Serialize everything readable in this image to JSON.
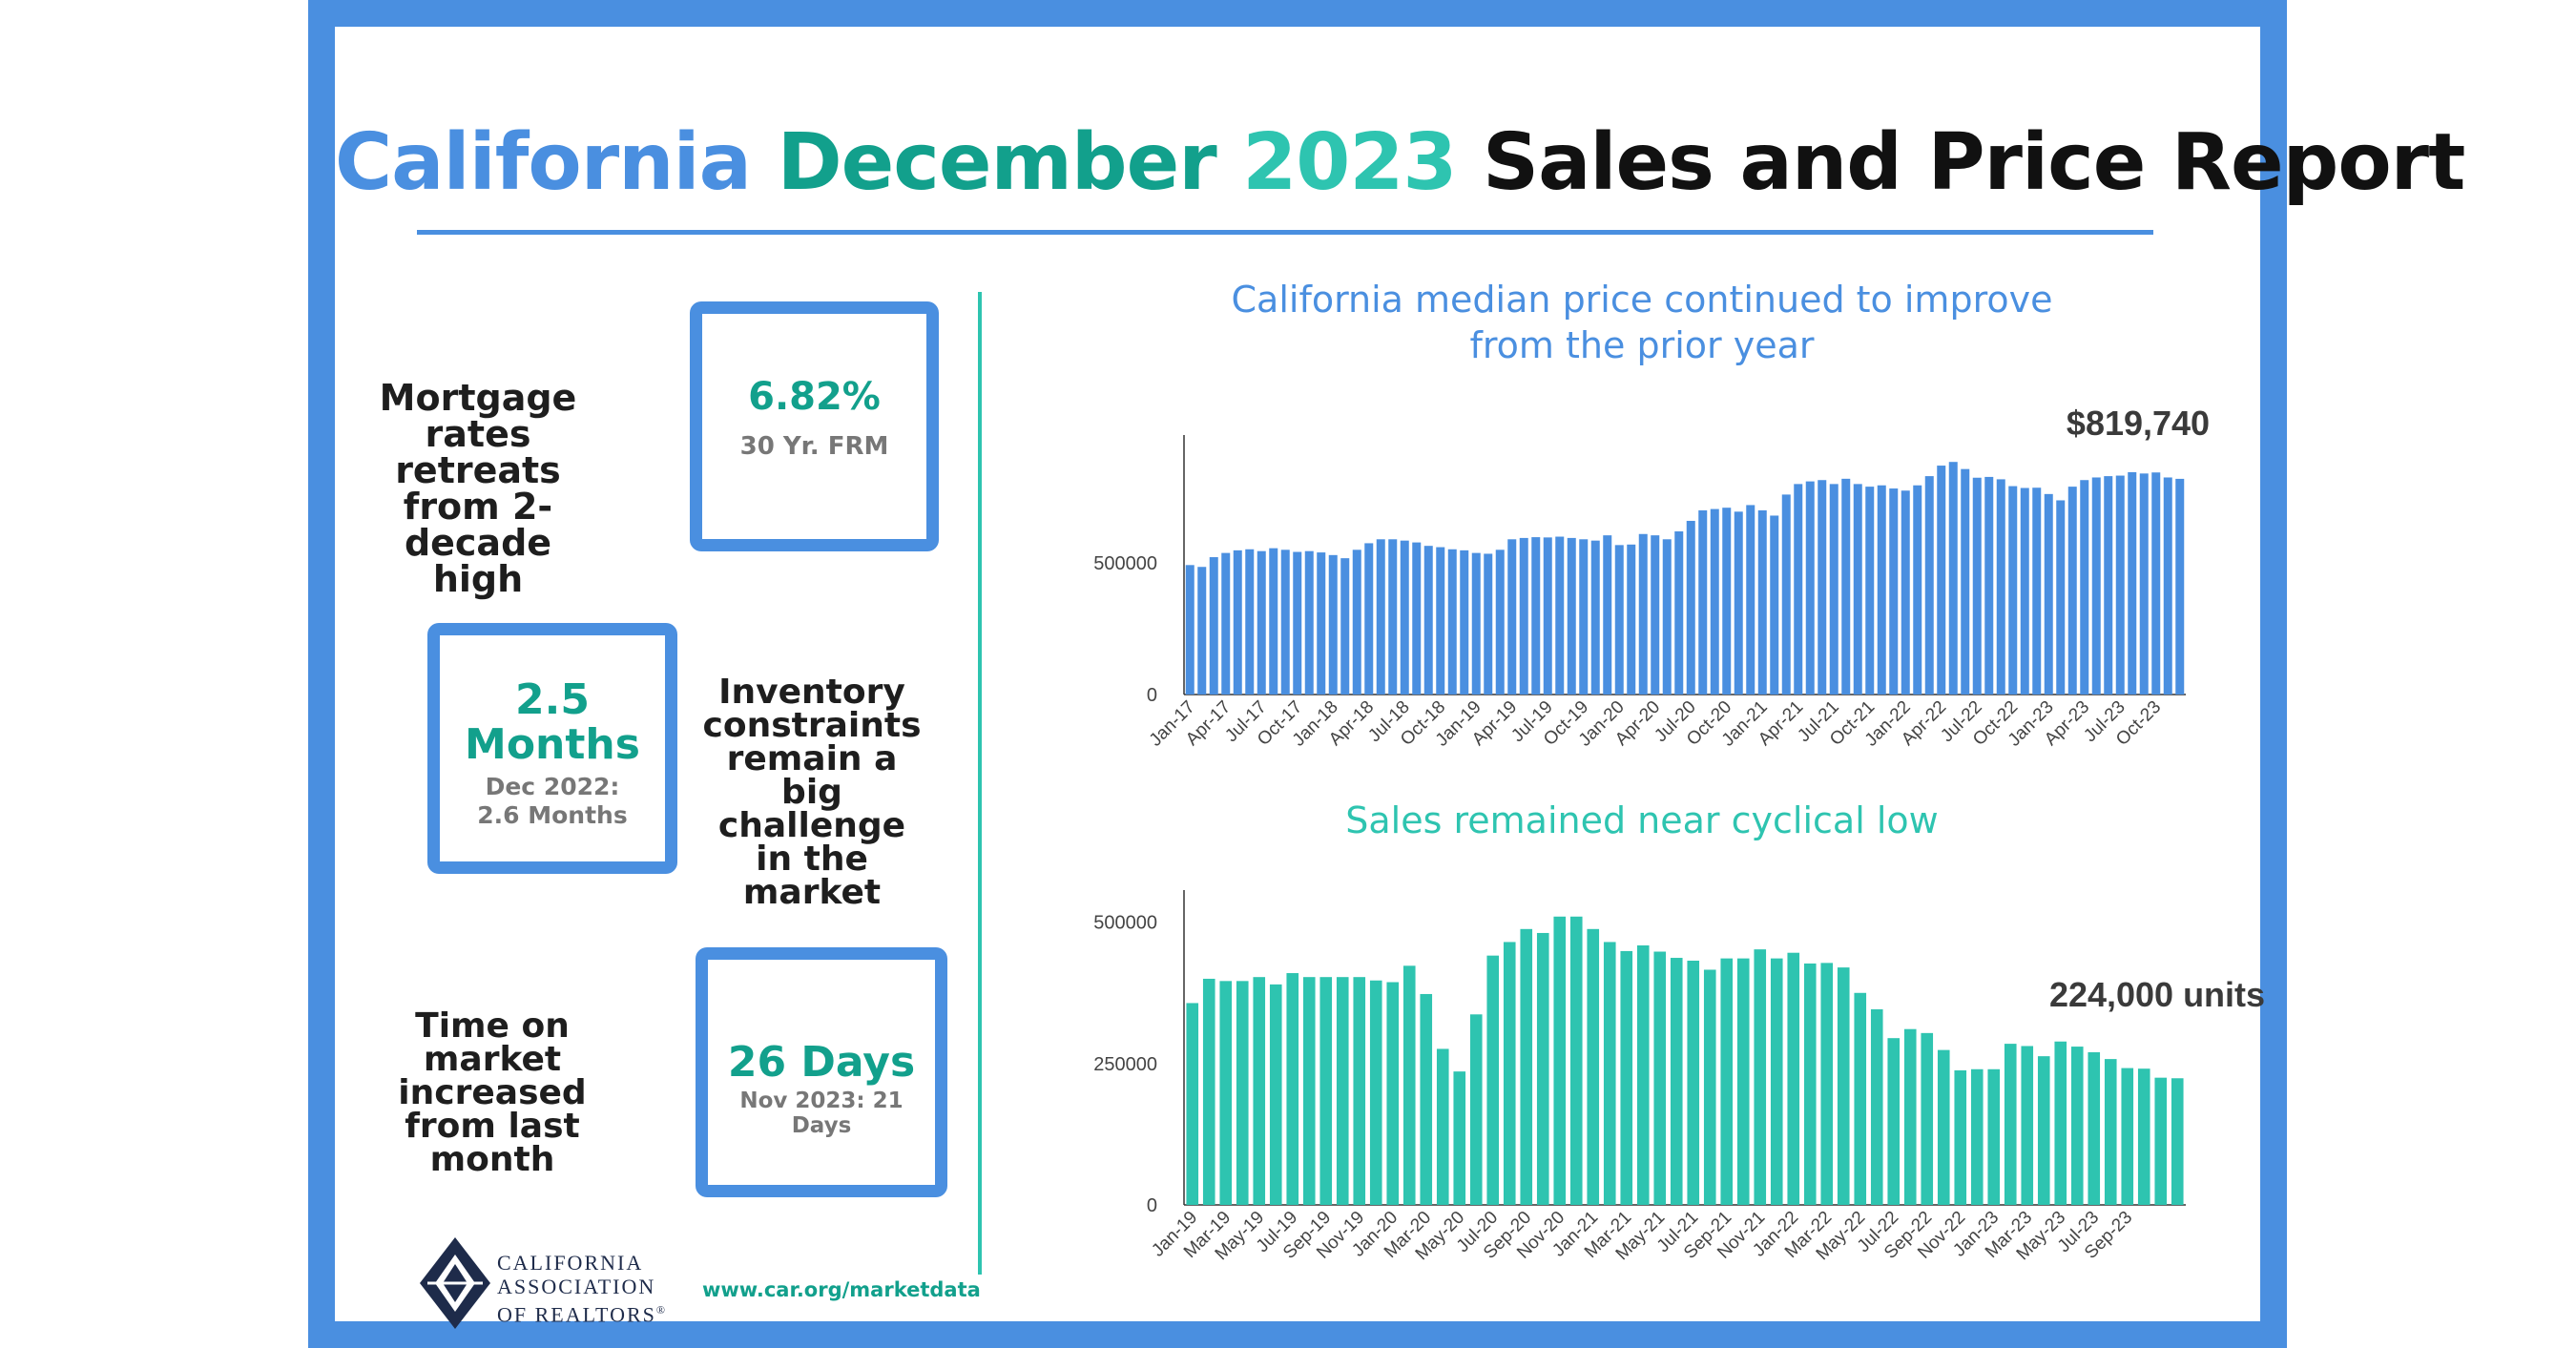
{
  "title": {
    "part1": "California",
    "part2": "December",
    "part3": "2023",
    "part4": "Sales and Price Report"
  },
  "mortgage": {
    "text": "Mortgage rates retreats from 2-decade high",
    "value": "6.82%",
    "sub": "30 Yr. FRM"
  },
  "inventory": {
    "text": "Inventory constraints remain a big challenge in the market",
    "value1": "2.5",
    "value2": "Months",
    "sub1": "Dec 2022:",
    "sub2": "2.6 Months"
  },
  "time_on_market": {
    "text": "Time on market increased from last month",
    "value": "26 Days",
    "sub": "Nov 2023: 21 Days"
  },
  "footer": {
    "org_line1": "CALIFORNIA",
    "org_line2": "ASSOCIATION",
    "org_line3": "OF REALTORS",
    "org_mark": "®",
    "url": "www.car.org/marketdata"
  },
  "colors": {
    "blue": "#4a8fe0",
    "teal": "#2ec4b0",
    "dark_teal": "#12a08c"
  },
  "chart_data": [
    {
      "type": "bar",
      "title_line1": "California median price continued to improve",
      "title_line2": "from the prior year",
      "annotation": "$819,740",
      "x_ticks": [
        "Jan-17",
        "Apr-17",
        "Jul-17",
        "Oct-17",
        "Jan-18",
        "Apr-18",
        "Jul-18",
        "Oct-18",
        "Jan-19",
        "Apr-19",
        "Jul-19",
        "Oct-19",
        "Jan-20",
        "Apr-20",
        "Jul-20",
        "Oct-20",
        "Jan-21",
        "Apr-21",
        "Jul-21",
        "Oct-21",
        "Jan-22",
        "Apr-22",
        "Jul-22",
        "Oct-22",
        "Jan-23",
        "Apr-23",
        "Jul-23",
        "Oct-23"
      ],
      "y_ticks": [
        "0",
        "500000"
      ],
      "ylim": [
        0,
        950000
      ],
      "color": "#4a8fe0",
      "values": [
        492000,
        485000,
        522000,
        538000,
        548000,
        552000,
        545000,
        556000,
        550000,
        542000,
        545000,
        540000,
        530000,
        518000,
        550000,
        575000,
        590000,
        590000,
        585000,
        578000,
        565000,
        560000,
        552000,
        548000,
        538000,
        535000,
        550000,
        590000,
        595000,
        598000,
        597000,
        600000,
        595000,
        590000,
        585000,
        605000,
        568000,
        570000,
        610000,
        605000,
        590000,
        620000,
        660000,
        700000,
        705000,
        710000,
        695000,
        720000,
        700000,
        680000,
        760000,
        800000,
        810000,
        815000,
        800000,
        820000,
        800000,
        790000,
        795000,
        783000,
        775000,
        795000,
        830000,
        870000,
        884000,
        857000,
        824000,
        827000,
        818000,
        792000,
        785000,
        786000,
        762000,
        738000,
        790000,
        815000,
        825000,
        830000,
        832000,
        845000,
        840000,
        844000,
        825000,
        819740
      ]
    },
    {
      "type": "bar",
      "title": "Sales remained near cyclical low",
      "annotation": "224,000 units",
      "x_ticks": [
        "Jan-19",
        "Mar-19",
        "May-19",
        "Jul-19",
        "Sep-19",
        "Nov-19",
        "Jan-20",
        "Mar-20",
        "May-20",
        "Jul-20",
        "Sep-20",
        "Nov-20",
        "Jan-21",
        "Mar-21",
        "May-21",
        "Jul-21",
        "Sep-21",
        "Nov-21",
        "Jan-22",
        "Mar-22",
        "May-22",
        "Jul-22",
        "Sep-22",
        "Nov-22",
        "Jan-23",
        "Mar-23",
        "May-23",
        "Jul-23",
        "Sep-23"
      ],
      "y_ticks": [
        "0",
        "250000",
        "500000"
      ],
      "ylim": [
        0,
        540000
      ],
      "color": "#2ec4b0",
      "values": [
        357000,
        400000,
        396000,
        396000,
        403000,
        390000,
        410000,
        403000,
        403000,
        403000,
        403000,
        397000,
        394000,
        423000,
        373000,
        276000,
        236000,
        337000,
        441000,
        465000,
        488000,
        481000,
        510000,
        510000,
        488000,
        465000,
        449000,
        459000,
        448000,
        437000,
        432000,
        416000,
        436000,
        436000,
        452000,
        436000,
        446000,
        427000,
        428000,
        420000,
        375000,
        346000,
        295000,
        311000,
        304000,
        274000,
        238000,
        240000,
        240000,
        285000,
        281000,
        263000,
        289000,
        280000,
        270000,
        258000,
        242000,
        241000,
        225000,
        224000
      ]
    }
  ]
}
